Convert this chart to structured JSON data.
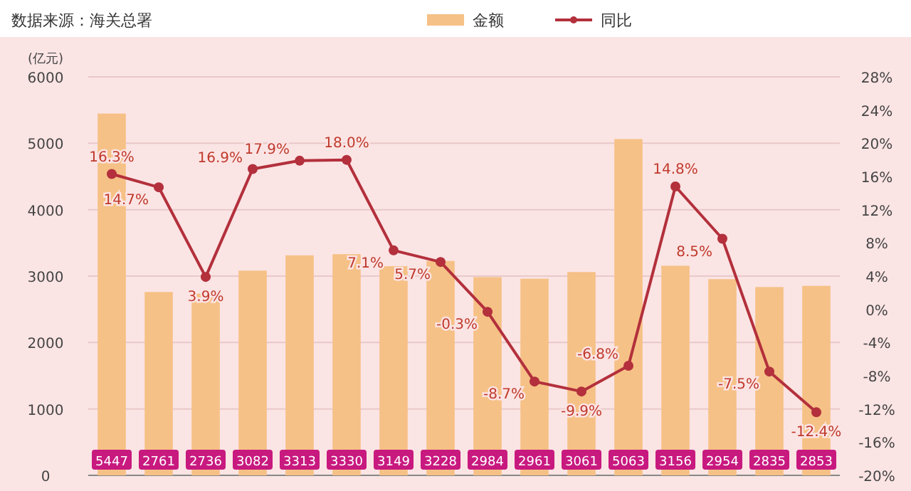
{
  "chart_data": {
    "type": "bar",
    "annotations": [
      "数据来源：海关总署"
    ],
    "ylabel": "(亿元)",
    "categories": [
      null,
      null,
      null,
      null,
      null,
      null,
      null,
      null,
      null,
      null,
      null,
      null,
      null,
      null,
      null,
      null
    ],
    "series": [
      {
        "name": "金额",
        "color": "#f6c186",
        "values": [
          5447,
          2761,
          2736,
          3082,
          3313,
          3330,
          3149,
          3228,
          2984,
          2961,
          3061,
          5063,
          3156,
          2954,
          2835,
          2853
        ],
        "value_labels": [
          "5447",
          "2761",
          "2736",
          "3082",
          "3313",
          "3330",
          "3149",
          "3228",
          "2984",
          "2961",
          "3061",
          "5063",
          "3156",
          "2954",
          "2835",
          "2853"
        ]
      },
      {
        "name": "同比",
        "type": "line",
        "axis": "y2",
        "color": "#b3303c",
        "marker": "circle",
        "values": [
          16.3,
          14.7,
          3.9,
          16.9,
          17.9,
          18.0,
          7.1,
          5.7,
          -0.3,
          -8.7,
          -9.9,
          -6.8,
          14.8,
          8.5,
          -7.5,
          -12.4
        ],
        "value_labels": [
          "16.3%",
          "14.7%",
          "3.9%",
          "16.9%",
          "17.9%",
          "18.0%",
          "7.1%",
          "5.7%",
          "-0.3%",
          "-8.7%",
          "-9.9%",
          "-6.8%",
          "14.8%",
          "8.5%",
          "-7.5%",
          "-12.4%"
        ]
      }
    ],
    "ylim": [
      0,
      6000
    ],
    "yticks": [
      0,
      1000,
      2000,
      3000,
      4000,
      5000,
      6000
    ],
    "y2lim": [
      -20,
      28
    ],
    "y2ticks": [
      {
        "value": 28,
        "label": "28%"
      },
      {
        "value": 24,
        "label": "24%"
      },
      {
        "value": 20,
        "label": "20%"
      },
      {
        "value": 16,
        "label": "16%"
      },
      {
        "value": 12,
        "label": "12%"
      },
      {
        "value": 8,
        "label": "8%"
      },
      {
        "value": 4,
        "label": "4%"
      },
      {
        "value": 0,
        "label": "0%"
      },
      {
        "value": -4,
        "label": "-4%"
      },
      {
        "value": -8,
        "label": "-8%"
      },
      {
        "value": -12,
        "label": "-12%"
      },
      {
        "value": -16,
        "label": "-16%"
      },
      {
        "value": -20,
        "label": "-20%"
      }
    ],
    "grid": "y",
    "legend": "top"
  }
}
